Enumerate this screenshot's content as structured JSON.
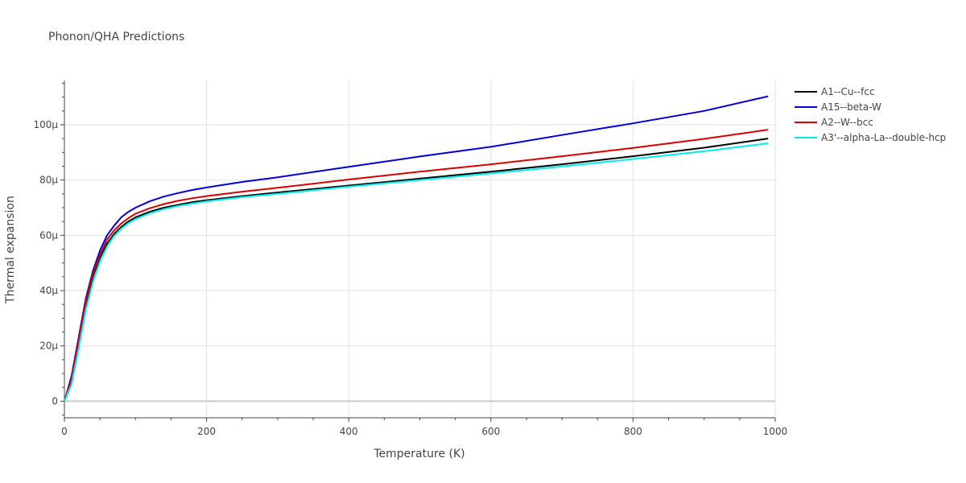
{
  "chart_data": {
    "type": "line",
    "title": "Phonon/QHA Predictions",
    "xlabel": "Temperature (K)",
    "ylabel": "Thermal expansion",
    "xlim": [
      0,
      1000
    ],
    "ylim": [
      -6,
      116
    ],
    "xticks": [
      0,
      200,
      400,
      600,
      800,
      1000
    ],
    "xtick_labels": [
      "0",
      "200",
      "400",
      "600",
      "800",
      "1000"
    ],
    "yticks": [
      0,
      20,
      40,
      60,
      80,
      100
    ],
    "ytick_labels": [
      "0",
      "20μ",
      "40μ",
      "60μ",
      "80μ",
      "100μ"
    ],
    "grid": true,
    "legend_position": "top-right",
    "x": [
      0,
      10,
      20,
      30,
      40,
      50,
      60,
      70,
      80,
      90,
      100,
      120,
      140,
      160,
      180,
      200,
      250,
      300,
      400,
      500,
      600,
      700,
      800,
      900,
      990
    ],
    "series": [
      {
        "name": "A1--Cu--fcc",
        "color": "#000000",
        "values": [
          0,
          7,
          21,
          35,
          45,
          52,
          57,
          60.5,
          63,
          65,
          66.5,
          68.5,
          70,
          71,
          72,
          72.7,
          74.2,
          75.5,
          78,
          80.5,
          83,
          85.7,
          88.6,
          91.7,
          95
        ]
      },
      {
        "name": "A15--beta-W",
        "color": "#0000dd",
        "values": [
          0,
          9,
          23,
          37,
          47,
          54.5,
          60,
          63.5,
          66.5,
          68.5,
          70,
          72.3,
          74,
          75.3,
          76.4,
          77.3,
          79.3,
          81,
          84.8,
          88.5,
          92,
          96.3,
          100.5,
          105,
          110.3
        ]
      },
      {
        "name": "A2--W--bcc",
        "color": "#dd0000",
        "values": [
          0,
          8,
          22,
          36,
          46,
          53,
          58.5,
          61.8,
          64.3,
          66.2,
          67.8,
          69.8,
          71.3,
          72.5,
          73.4,
          74.2,
          75.8,
          77.2,
          80.2,
          83,
          85.7,
          88.6,
          91.6,
          94.9,
          98.2
        ]
      },
      {
        "name": "A3'--alpha-La--double-hcp",
        "color": "#00eeee",
        "values": [
          0,
          6,
          19,
          33,
          43,
          50.5,
          56,
          59.8,
          62.4,
          64.4,
          65.9,
          68,
          69.5,
          70.6,
          71.5,
          72.3,
          73.8,
          75,
          77.6,
          80,
          82.4,
          84.9,
          87.6,
          90.4,
          93.3
        ]
      }
    ]
  }
}
